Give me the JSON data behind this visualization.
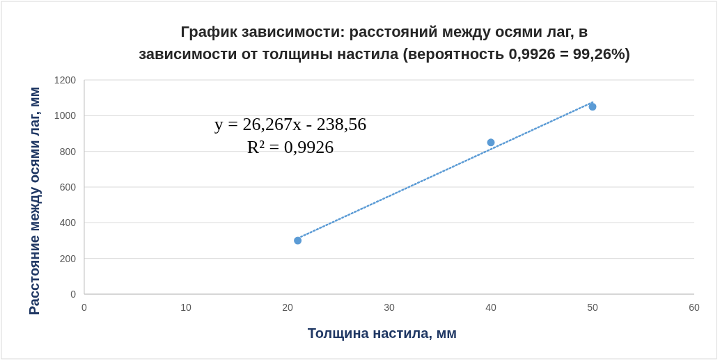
{
  "chart_data": {
    "type": "scatter",
    "title": "График зависимости: расстояний между осями лаг, в\nзависимости от толщины настила (вероятность 0,9926 = 99,26%)",
    "xlabel": "Толщина настила, мм",
    "ylabel": "Расстояние между осями лаг, мм",
    "series": [
      {
        "color": "#5b9bd5",
        "x": [
          21,
          40,
          50
        ],
        "values": [
          300,
          850,
          1050
        ],
        "marker": "circle"
      },
      {
        "type": "line",
        "color": "#5b9bd5",
        "x": [
          21,
          50
        ],
        "values": [
          313,
          1075
        ],
        "line_style": "dotted",
        "marker": "none"
      }
    ],
    "xlim": [
      0,
      60
    ],
    "xticks": [
      0,
      10,
      20,
      30,
      40,
      50,
      60
    ],
    "ylim": [
      0,
      1200
    ],
    "yticks": [
      0,
      200,
      400,
      600,
      800,
      1000,
      1200
    ],
    "grid": "y",
    "annotations": [
      "y = 26,267x - 238,56",
      "R² = 0,9926"
    ]
  }
}
